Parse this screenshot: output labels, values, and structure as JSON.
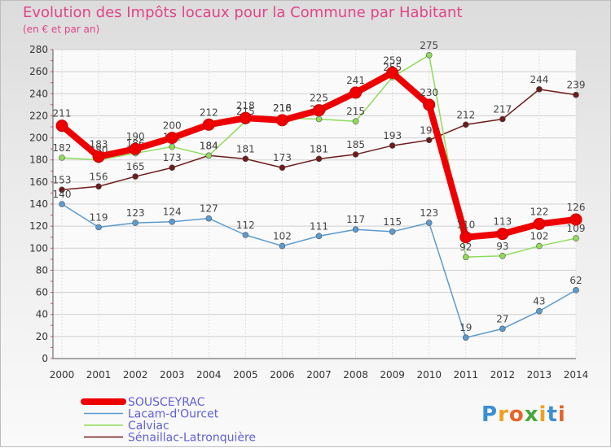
{
  "title": "Evolution des Impôts locaux pour la Commune par Habitant",
  "subtitle": "(en € et par an)",
  "logo": {
    "letters": [
      "P",
      "r",
      "o",
      "x",
      "i",
      "t",
      "i"
    ],
    "colors": [
      "#3b8fd3",
      "#f0a01e",
      "#e8632b",
      "#45a83a",
      "#f0a01e",
      "#3b8fd3",
      "#e8632b"
    ]
  },
  "chart_data": {
    "type": "line",
    "title": "Evolution des Impôts locaux pour la Commune par Habitant",
    "ylabel": "(en € et par an)",
    "x": [
      2000,
      2001,
      2002,
      2003,
      2004,
      2005,
      2006,
      2007,
      2008,
      2009,
      2010,
      2011,
      2012,
      2013,
      2014
    ],
    "ylim": [
      0,
      280
    ],
    "yticks": [
      0,
      20,
      40,
      60,
      80,
      100,
      120,
      140,
      160,
      180,
      200,
      220,
      240,
      260,
      280
    ],
    "grid": true,
    "legend": "bottom-left",
    "series": [
      {
        "name": "SOUSCEYRAC",
        "color": "#ee0000",
        "values": [
          211,
          183,
          190,
          200,
          212,
          218,
          216,
          225,
          241,
          259,
          230,
          110,
          113,
          122,
          126
        ]
      },
      {
        "name": "Lacam-d'Ourcet",
        "color": "#5b9bd0",
        "values": [
          140,
          119,
          123,
          124,
          127,
          112,
          102,
          111,
          117,
          115,
          123,
          19,
          27,
          43,
          62
        ]
      },
      {
        "name": "Calviac",
        "color": "#8fdc5a",
        "values": [
          182,
          180,
          186,
          192,
          184,
          215,
          218,
          217,
          215,
          255,
          275,
          92,
          93,
          102,
          109
        ]
      },
      {
        "name": "Sénaillac-Latronquière",
        "color": "#6e1b1b",
        "values": [
          153,
          156,
          165,
          173,
          184,
          181,
          173,
          181,
          185,
          193,
          198,
          212,
          217,
          244,
          239
        ]
      }
    ]
  }
}
